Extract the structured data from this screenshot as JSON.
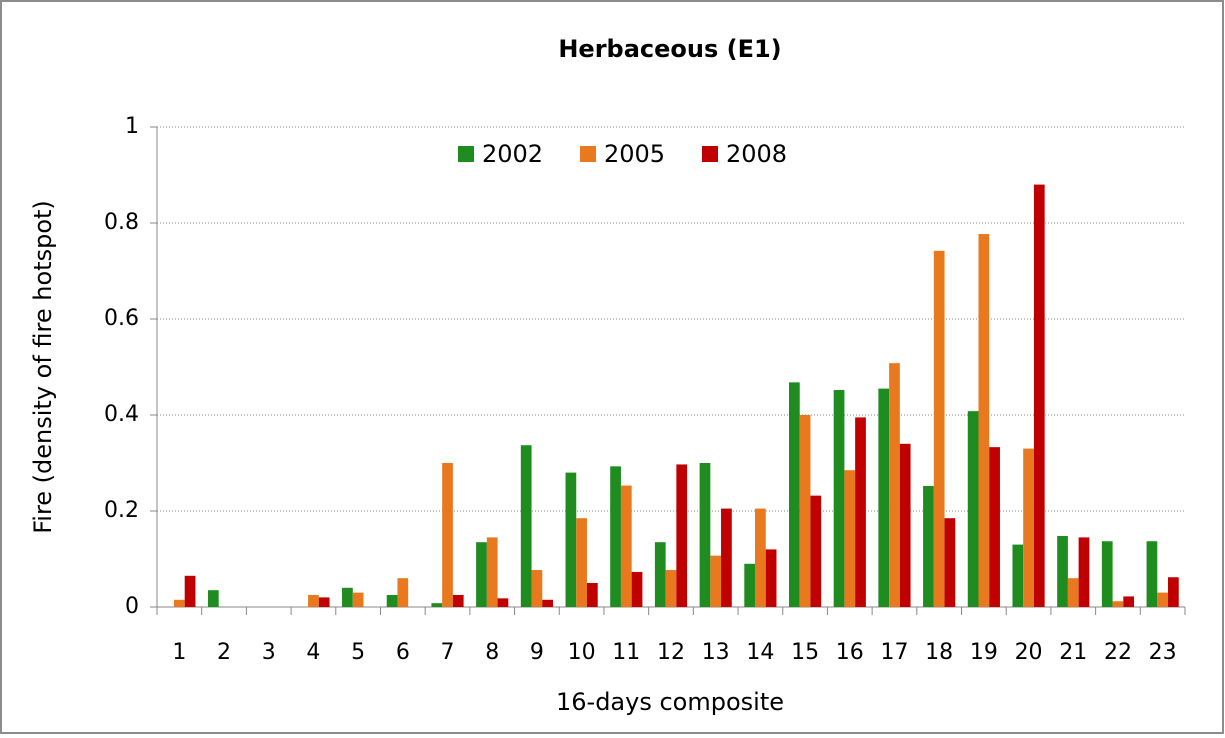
{
  "chart_data": {
    "type": "bar",
    "title": "Herbaceous (E1)",
    "x_label": "16-days composite",
    "y_label": "Fire (density of fire hotspot)",
    "categories": [
      "1",
      "2",
      "3",
      "4",
      "5",
      "6",
      "7",
      "8",
      "9",
      "10",
      "11",
      "12",
      "13",
      "14",
      "15",
      "16",
      "17",
      "18",
      "19",
      "20",
      "21",
      "22",
      "23"
    ],
    "series": [
      {
        "name": "2002",
        "color": "#1e8c1e",
        "values": [
          0,
          0.035,
          0,
          0,
          0.04,
          0.025,
          0.008,
          0.135,
          0.337,
          0.28,
          0.293,
          0.135,
          0.3,
          0.09,
          0.468,
          0.452,
          0.455,
          0.252,
          0.408,
          0.13,
          0.148,
          0.137,
          0.137
        ]
      },
      {
        "name": "2005",
        "color": "#e8791f",
        "values": [
          0.015,
          0,
          0,
          0.025,
          0.03,
          0.06,
          0.3,
          0.145,
          0.077,
          0.185,
          0.253,
          0.077,
          0.107,
          0.205,
          0.4,
          0.285,
          0.508,
          0.742,
          0.777,
          0.33,
          0.06,
          0.012,
          0.03
        ]
      },
      {
        "name": "2008",
        "color": "#c00000",
        "values": [
          0.065,
          0,
          0,
          0.02,
          0,
          0,
          0.025,
          0.018,
          0.015,
          0.05,
          0.073,
          0.297,
          0.205,
          0.12,
          0.232,
          0.395,
          0.34,
          0.185,
          0.333,
          0.88,
          0.145,
          0.022,
          0.062
        ]
      }
    ],
    "ylim": [
      0,
      1
    ],
    "yticks": [
      0,
      0.2,
      0.4,
      0.6,
      0.8,
      1
    ],
    "grid": true,
    "legend": "top"
  }
}
